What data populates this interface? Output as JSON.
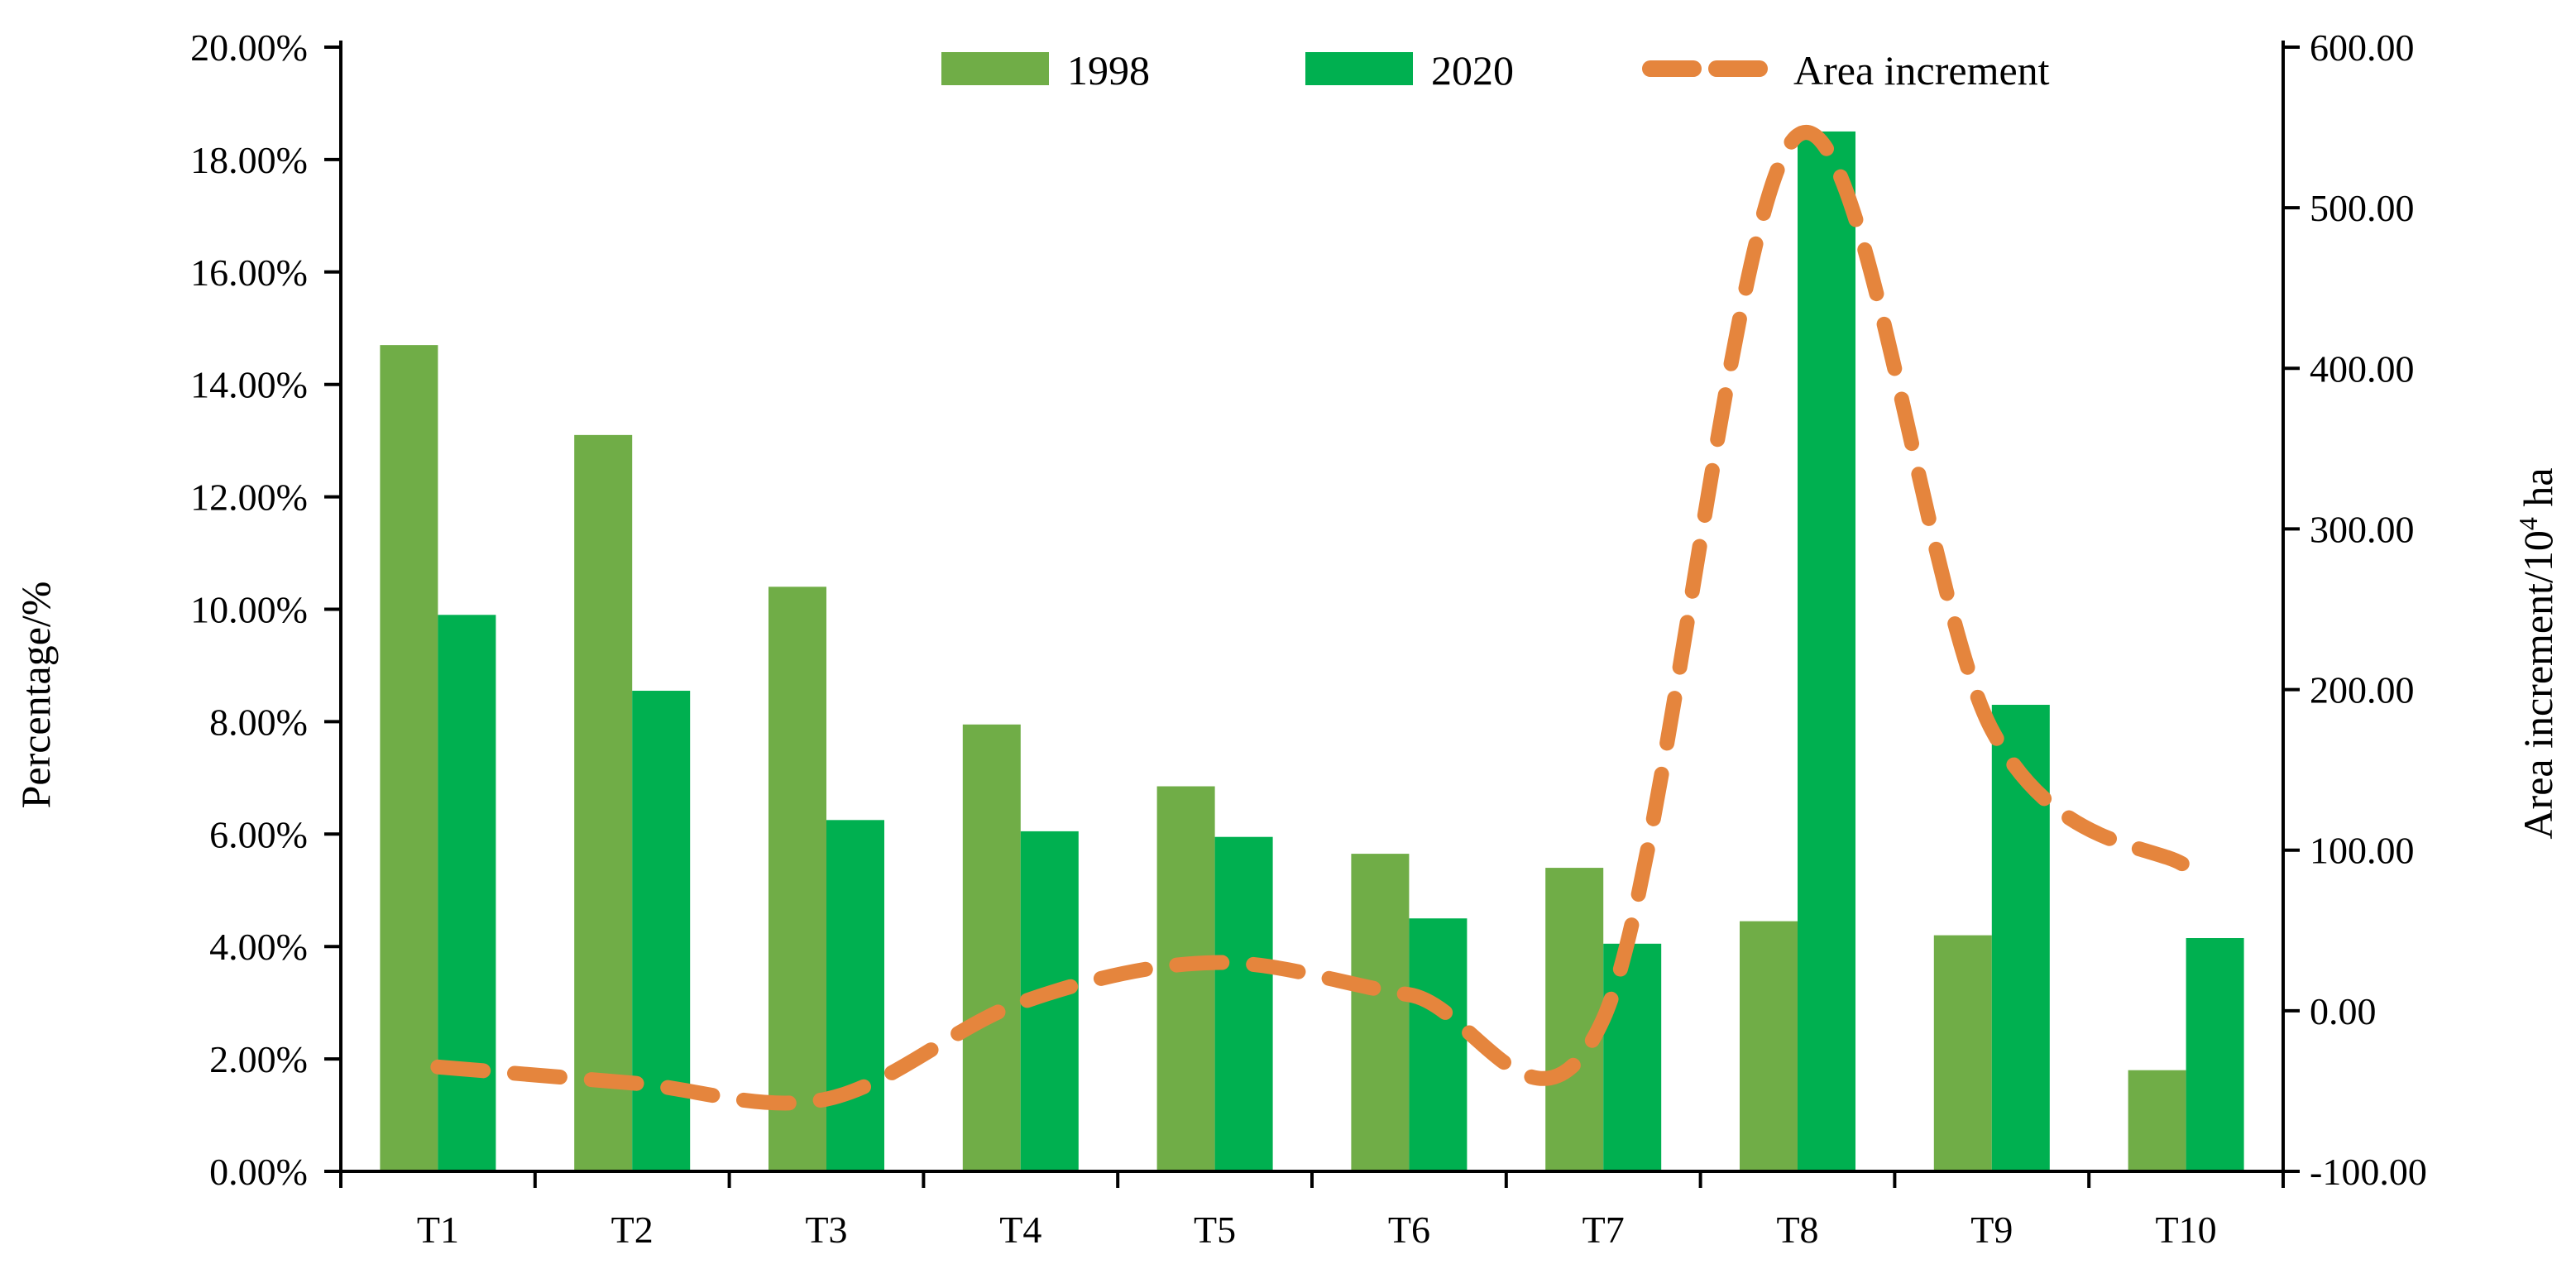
{
  "chart_data": {
    "type": "bar",
    "categories": [
      "T1",
      "T2",
      "T3",
      "T4",
      "T5",
      "T6",
      "T7",
      "T8",
      "T9",
      "T10"
    ],
    "series": [
      {
        "name": "1998",
        "axis": "left",
        "kind": "bar",
        "color": "#70ad47",
        "values": [
          14.7,
          13.1,
          10.4,
          7.95,
          6.85,
          5.65,
          5.4,
          4.45,
          4.2,
          1.8
        ]
      },
      {
        "name": "2020",
        "axis": "left",
        "kind": "bar",
        "color": "#00b050",
        "values": [
          9.9,
          8.55,
          6.25,
          6.05,
          5.95,
          4.5,
          4.05,
          18.5,
          8.3,
          4.15
        ]
      },
      {
        "name": "Area increment",
        "axis": "right",
        "kind": "line",
        "style": "dashed",
        "color": "#e5853d",
        "values": [
          -35,
          -45,
          -55,
          5,
          30,
          10,
          -5,
          545,
          175,
          90
        ]
      }
    ],
    "left_axis": {
      "label": "Percentage/%",
      "min": 0,
      "max": 20,
      "step": 2,
      "tick_labels": [
        "0.00%",
        "2.00%",
        "4.00%",
        "6.00%",
        "8.00%",
        "10.00%",
        "12.00%",
        "14.00%",
        "16.00%",
        "18.00%",
        "20.00%"
      ]
    },
    "right_axis": {
      "label_main": "Area increment/10",
      "label_sup": "4",
      "label_unit": " ha",
      "min": -100,
      "max": 600,
      "step": 100,
      "tick_labels": [
        "-100.00",
        "0.00",
        "100.00",
        "200.00",
        "300.00",
        "400.00",
        "500.00",
        "600.00"
      ]
    },
    "legend": {
      "position": "top",
      "entries": [
        "1998",
        "2020",
        "Area increment"
      ]
    },
    "grid": false
  }
}
